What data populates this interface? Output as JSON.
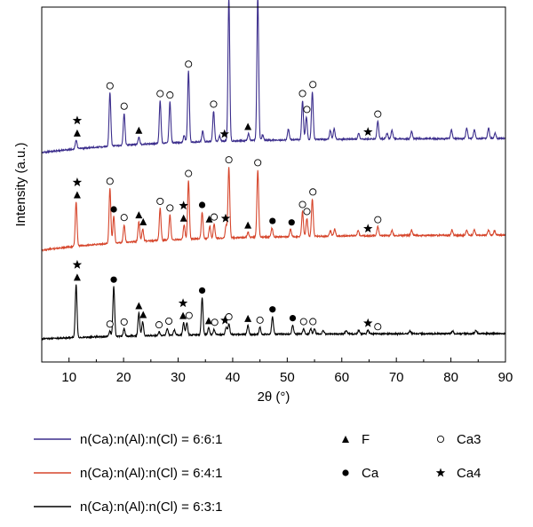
{
  "chart_data": {
    "type": "line",
    "title": "",
    "xlabel": "2θ (°)",
    "ylabel": "Intensity (a.u.)",
    "xlim": [
      5,
      90
    ],
    "x_ticks": [
      10,
      20,
      30,
      40,
      50,
      60,
      70,
      80,
      90
    ],
    "grid": false,
    "legend_position": "bottom",
    "series": [
      {
        "name": "n(Ca):n(Al):n(Cl) = 6:6:1",
        "color": "#3b2d8c",
        "peaks": [
          [
            11.3,
            10
          ],
          [
            17.5,
            60
          ],
          [
            20.1,
            36
          ],
          [
            22.8,
            8
          ],
          [
            26.7,
            48
          ],
          [
            28.5,
            46
          ],
          [
            31.1,
            8
          ],
          [
            31.9,
            80
          ],
          [
            34.5,
            12
          ],
          [
            36.5,
            34
          ],
          [
            37.6,
            6
          ],
          [
            39.3,
            162
          ],
          [
            42.9,
            8
          ],
          [
            44.6,
            162
          ],
          [
            45.5,
            6
          ],
          [
            50.2,
            12
          ],
          [
            52.8,
            44
          ],
          [
            53.5,
            26
          ],
          [
            54.6,
            54
          ],
          [
            57.9,
            10
          ],
          [
            58.6,
            12
          ],
          [
            63.1,
            6
          ],
          [
            66.6,
            20
          ],
          [
            68.3,
            6
          ],
          [
            69.2,
            10
          ],
          [
            72.8,
            8
          ],
          [
            80.1,
            10
          ],
          [
            82.9,
            12
          ],
          [
            84.3,
            10
          ],
          [
            86.9,
            12
          ],
          [
            88.1,
            6
          ]
        ],
        "markers": [
          {
            "x": 11.5,
            "symbols": [
              "star",
              "triangle"
            ]
          },
          {
            "x": 17.5,
            "symbols": [
              "ring"
            ]
          },
          {
            "x": 20.1,
            "symbols": [
              "ring"
            ]
          },
          {
            "x": 22.8,
            "symbols": [
              "triangle"
            ]
          },
          {
            "x": 26.7,
            "symbols": [
              "ring"
            ]
          },
          {
            "x": 28.5,
            "symbols": [
              "ring"
            ]
          },
          {
            "x": 31.9,
            "symbols": [
              "ring"
            ]
          },
          {
            "x": 36.5,
            "symbols": [
              "ring"
            ]
          },
          {
            "x": 38.5,
            "symbols": [
              "star"
            ]
          },
          {
            "x": 39.3,
            "symbols": [
              "ring"
            ]
          },
          {
            "x": 42.8,
            "symbols": [
              "triangle"
            ]
          },
          {
            "x": 44.6,
            "symbols": [
              "ring"
            ]
          },
          {
            "x": 52.8,
            "symbols": [
              "ring"
            ]
          },
          {
            "x": 53.6,
            "symbols": [
              "ring"
            ]
          },
          {
            "x": 54.7,
            "symbols": [
              "ring"
            ]
          },
          {
            "x": 64.8,
            "symbols": [
              "star"
            ]
          },
          {
            "x": 66.6,
            "symbols": [
              "ring"
            ]
          }
        ]
      },
      {
        "name": "n(Ca):n(Al):n(Cl) = 6:4:1",
        "color": "#d6452b",
        "peaks": [
          [
            11.3,
            50
          ],
          [
            17.5,
            62
          ],
          [
            18.2,
            30
          ],
          [
            20.1,
            20
          ],
          [
            22.8,
            22
          ],
          [
            23.5,
            14
          ],
          [
            26.7,
            36
          ],
          [
            28.5,
            28
          ],
          [
            31.1,
            16
          ],
          [
            31.9,
            66
          ],
          [
            34.4,
            30
          ],
          [
            35.8,
            14
          ],
          [
            36.6,
            16
          ],
          [
            38.8,
            14
          ],
          [
            39.3,
            80
          ],
          [
            42.8,
            6
          ],
          [
            44.6,
            76
          ],
          [
            47.2,
            10
          ],
          [
            50.6,
            8
          ],
          [
            52.8,
            28
          ],
          [
            53.6,
            20
          ],
          [
            54.6,
            42
          ],
          [
            57.9,
            6
          ],
          [
            58.7,
            8
          ],
          [
            63.0,
            6
          ],
          [
            66.6,
            10
          ],
          [
            69.2,
            6
          ],
          [
            72.8,
            6
          ],
          [
            80.2,
            6
          ],
          [
            82.9,
            6
          ],
          [
            84.3,
            6
          ],
          [
            86.9,
            6
          ],
          [
            88.0,
            5
          ]
        ],
        "markers": [
          {
            "x": 11.5,
            "symbols": [
              "star",
              "triangle"
            ]
          },
          {
            "x": 17.5,
            "symbols": [
              "ring"
            ]
          },
          {
            "x": 18.2,
            "symbols": [
              "dot"
            ]
          },
          {
            "x": 20.1,
            "symbols": [
              "ring"
            ]
          },
          {
            "x": 22.8,
            "symbols": [
              "triangle"
            ]
          },
          {
            "x": 23.6,
            "symbols": [
              "triangle"
            ]
          },
          {
            "x": 26.7,
            "symbols": [
              "ring"
            ]
          },
          {
            "x": 28.5,
            "symbols": [
              "ring"
            ]
          },
          {
            "x": 31.0,
            "symbols": [
              "star",
              "triangle"
            ]
          },
          {
            "x": 31.9,
            "symbols": [
              "ring"
            ]
          },
          {
            "x": 34.4,
            "symbols": [
              "dot"
            ]
          },
          {
            "x": 35.7,
            "symbols": [
              "triangle"
            ]
          },
          {
            "x": 36.6,
            "symbols": [
              "ring"
            ]
          },
          {
            "x": 38.7,
            "symbols": [
              "star"
            ]
          },
          {
            "x": 39.3,
            "symbols": [
              "ring"
            ]
          },
          {
            "x": 42.8,
            "symbols": [
              "triangle"
            ]
          },
          {
            "x": 44.6,
            "symbols": [
              "ring"
            ]
          },
          {
            "x": 47.3,
            "symbols": [
              "dot"
            ]
          },
          {
            "x": 50.8,
            "symbols": [
              "dot"
            ]
          },
          {
            "x": 52.8,
            "symbols": [
              "ring"
            ]
          },
          {
            "x": 53.6,
            "symbols": [
              "ring"
            ]
          },
          {
            "x": 54.7,
            "symbols": [
              "ring"
            ]
          },
          {
            "x": 64.8,
            "symbols": [
              "star"
            ]
          },
          {
            "x": 66.6,
            "symbols": [
              "ring"
            ]
          }
        ]
      },
      {
        "name": "n(Ca):n(Al):n(Cl) = 6:3:1",
        "color": "#000000",
        "peaks": [
          [
            11.3,
            60
          ],
          [
            17.5,
            6
          ],
          [
            18.2,
            56
          ],
          [
            20.1,
            8
          ],
          [
            22.8,
            26
          ],
          [
            23.5,
            16
          ],
          [
            26.5,
            4
          ],
          [
            28.0,
            8
          ],
          [
            29.3,
            6
          ],
          [
            31.0,
            14
          ],
          [
            31.6,
            14
          ],
          [
            34.4,
            42
          ],
          [
            35.6,
            8
          ],
          [
            36.6,
            6
          ],
          [
            38.8,
            8
          ],
          [
            39.3,
            12
          ],
          [
            42.8,
            10
          ],
          [
            45.0,
            8
          ],
          [
            47.3,
            20
          ],
          [
            51.0,
            10
          ],
          [
            53.0,
            6
          ],
          [
            54.3,
            6
          ],
          [
            55.0,
            6
          ],
          [
            56.6,
            4
          ],
          [
            60.8,
            4
          ],
          [
            63.1,
            4
          ],
          [
            64.8,
            4
          ],
          [
            72.5,
            3
          ],
          [
            80.3,
            3
          ],
          [
            84.6,
            4
          ]
        ],
        "markers": [
          {
            "x": 11.5,
            "symbols": [
              "star",
              "triangle"
            ]
          },
          {
            "x": 17.5,
            "symbols": [
              "ring"
            ]
          },
          {
            "x": 18.2,
            "symbols": [
              "dot"
            ]
          },
          {
            "x": 20.1,
            "symbols": [
              "ring"
            ]
          },
          {
            "x": 22.8,
            "symbols": [
              "triangle"
            ]
          },
          {
            "x": 23.6,
            "symbols": [
              "triangle"
            ]
          },
          {
            "x": 26.5,
            "symbols": [
              "ring"
            ]
          },
          {
            "x": 28.3,
            "symbols": [
              "ring"
            ]
          },
          {
            "x": 30.9,
            "symbols": [
              "star",
              "triangle"
            ]
          },
          {
            "x": 32.0,
            "symbols": [
              "ring"
            ]
          },
          {
            "x": 34.4,
            "symbols": [
              "dot"
            ]
          },
          {
            "x": 35.6,
            "symbols": [
              "triangle"
            ]
          },
          {
            "x": 36.7,
            "symbols": [
              "ring"
            ]
          },
          {
            "x": 38.6,
            "symbols": [
              "star"
            ]
          },
          {
            "x": 39.3,
            "symbols": [
              "ring"
            ]
          },
          {
            "x": 42.8,
            "symbols": [
              "triangle"
            ]
          },
          {
            "x": 45.0,
            "symbols": [
              "ring"
            ]
          },
          {
            "x": 47.3,
            "symbols": [
              "dot"
            ]
          },
          {
            "x": 51.0,
            "symbols": [
              "dot"
            ]
          },
          {
            "x": 53.0,
            "symbols": [
              "ring"
            ]
          },
          {
            "x": 54.7,
            "symbols": [
              "ring"
            ]
          },
          {
            "x": 64.8,
            "symbols": [
              "star"
            ]
          },
          {
            "x": 66.6,
            "symbols": [
              "ring"
            ]
          }
        ]
      }
    ],
    "phase_legend": [
      {
        "symbol": "triangle",
        "label": "F"
      },
      {
        "symbol": "ring",
        "label": "Ca3"
      },
      {
        "symbol": "dot",
        "label": "Ca"
      },
      {
        "symbol": "star",
        "label": "Ca4"
      }
    ]
  }
}
